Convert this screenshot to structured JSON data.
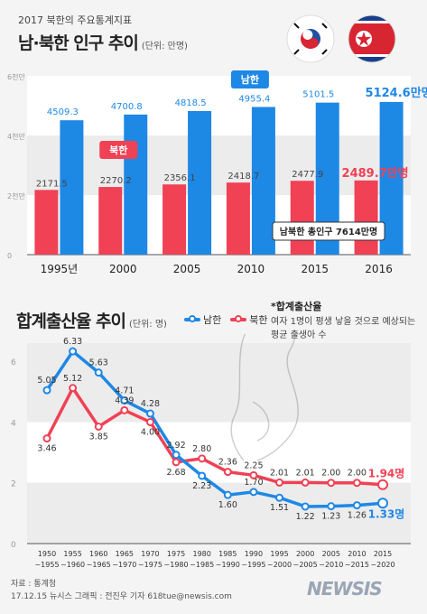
{
  "header": {
    "supertitle": "2017 북한의 주요통계지표",
    "title": "남·북한 인구 추이",
    "unit": "(단위: 만명)"
  },
  "flags": [
    "south-korea-flag",
    "north-korea-flag"
  ],
  "chart_data": [
    {
      "type": "bar",
      "title": "남·북한 인구 추이",
      "unit": "(단위: 만명)",
      "categories": [
        "1995년",
        "2000",
        "2005",
        "2010",
        "2015",
        "2016"
      ],
      "y_ticks": [
        "6천만",
        "4천만",
        "2천만",
        "0"
      ],
      "ylim": [
        0,
        6000
      ],
      "series": [
        {
          "name": "남한",
          "color": "#1e88e5",
          "values": [
            4509.3,
            4700.8,
            4818.5,
            4955.4,
            5101.5,
            5124.6
          ],
          "labels": [
            "4509.3",
            "4700.8",
            "4818.5",
            "4955.4",
            "5101.5",
            "5124.6만명"
          ]
        },
        {
          "name": "북한",
          "color": "#f04155",
          "values": [
            2171.5,
            2270.2,
            2356.1,
            2418.7,
            2477.9,
            2489.7
          ],
          "labels": [
            "2171.5",
            "2270.2",
            "2356.1",
            "2418.7",
            "2477.9",
            "2489.7만명"
          ]
        }
      ],
      "annotation": "남북한 총인구 7614만명"
    },
    {
      "type": "line",
      "title": "합계출산율 추이",
      "unit": "(단위: 명)",
      "legend": [
        "남한",
        "북한"
      ],
      "note_title": "*합계출산율",
      "note_text": "여자 1명이 평생 낳을 것으로 예상되는 평균 출생아 수",
      "x_top": [
        "1950",
        "1955",
        "1960",
        "1965",
        "1970",
        "1975",
        "1980",
        "1985",
        "1990",
        "1995",
        "2000",
        "2005",
        "2010",
        "2015"
      ],
      "x_bottom": [
        "~1955",
        "~1960",
        "~1965",
        "~1970",
        "~1975",
        "~1980",
        "~1985",
        "~1990",
        "~1995",
        "~2000",
        "~2005",
        "~2010",
        "~2015",
        "~2020"
      ],
      "y_ticks": [
        "6",
        "4",
        "2",
        "0"
      ],
      "ylim": [
        0,
        6.6
      ],
      "series": [
        {
          "name": "남한",
          "color": "#1e88e5",
          "values": [
            5.05,
            6.33,
            5.63,
            4.71,
            4.28,
            2.92,
            2.23,
            1.6,
            1.7,
            1.51,
            1.22,
            1.23,
            1.26,
            1.33
          ],
          "labels": [
            "5.05",
            "6.33",
            "5.63",
            "4.71",
            "4.28",
            "2.92",
            "2.23",
            "1.60",
            "1.70",
            "1.51",
            "1.22",
            "1.23",
            "1.26",
            "1.33명"
          ]
        },
        {
          "name": "북한",
          "color": "#f04155",
          "values": [
            3.46,
            5.12,
            3.85,
            4.39,
            4.0,
            2.68,
            2.8,
            2.36,
            2.25,
            2.01,
            2.01,
            2.0,
            2.0,
            1.94
          ],
          "labels": [
            "3.46",
            "5.12",
            "3.85",
            "4.39",
            "4.00",
            "2.68",
            "2.80",
            "2.36",
            "2.25",
            "2.01",
            "2.01",
            "2.00",
            "2.00",
            "1.94명"
          ]
        }
      ]
    }
  ],
  "footer": {
    "source": "자료 : 통계청",
    "credit": "17.12.15 뉴시스 그래픽 : 전진우 기자  618tue@newsis.com",
    "logo": "NEWSIS"
  }
}
